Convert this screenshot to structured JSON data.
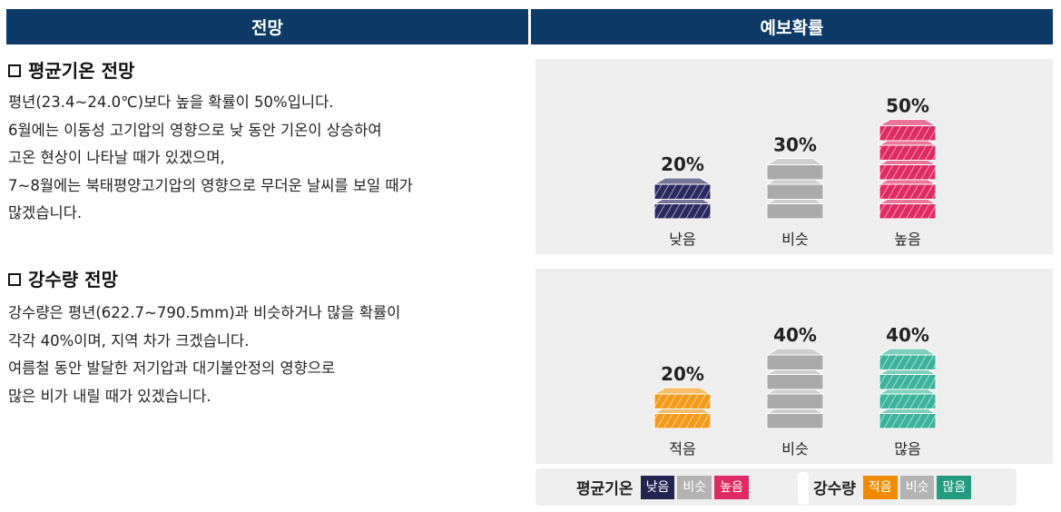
{
  "headers": {
    "left": "전망",
    "right": "예보확률"
  },
  "temperature": {
    "title": "평균기온 전망",
    "lines": [
      "평년(23.4~24.0℃)보다 높을 확률이 50%입니다.",
      "6월에는 이동성 고기압의 영향으로 낮 동안 기온이 상승하여",
      "고온 현상이 나타날 때가 있겠으며,",
      "7~8월에는 북태평양고기압의 영향으로 무더운 날씨를 보일 때가",
      "많겠습니다."
    ]
  },
  "precipitation": {
    "title": "강수량 전망",
    "lines": [
      "강수량은 평년(622.7~790.5mm)과 비슷하거나 많을 확률이",
      "각각 40%이며, 지역 차가 크겠습니다.",
      "여름철 동안 발달한 저기압과 대기불안정의 영향으로",
      "많은 비가 내릴 때가 있겠습니다."
    ]
  },
  "chart_data": [
    {
      "type": "bar",
      "categories": [
        "낮음",
        "비슷",
        "높음"
      ],
      "values": [
        20,
        30,
        50
      ],
      "labels": [
        "20%",
        "30%",
        "50%"
      ],
      "colors": [
        "#2a2a60",
        "#b3b3b3",
        "#e02a63"
      ],
      "patterned": [
        true,
        false,
        true
      ]
    },
    {
      "type": "bar",
      "categories": [
        "적음",
        "비슷",
        "많음"
      ],
      "values": [
        20,
        40,
        40
      ],
      "labels": [
        "20%",
        "40%",
        "40%"
      ],
      "colors": [
        "#f39a1a",
        "#b3b3b3",
        "#3bb39a"
      ],
      "patterned": [
        true,
        false,
        true
      ]
    }
  ],
  "legend": {
    "temperature": {
      "title": "평균기온",
      "items": [
        {
          "label": "낮음",
          "color": "#23234f"
        },
        {
          "label": "비슷",
          "color": "#b3b3b3"
        },
        {
          "label": "높음",
          "color": "#e02a63"
        }
      ]
    },
    "precipitation": {
      "title": "강수량",
      "items": [
        {
          "label": "적음",
          "color": "#f08a00"
        },
        {
          "label": "비슷",
          "color": "#b3b3b3"
        },
        {
          "label": "많음",
          "color": "#249b80"
        }
      ]
    }
  }
}
